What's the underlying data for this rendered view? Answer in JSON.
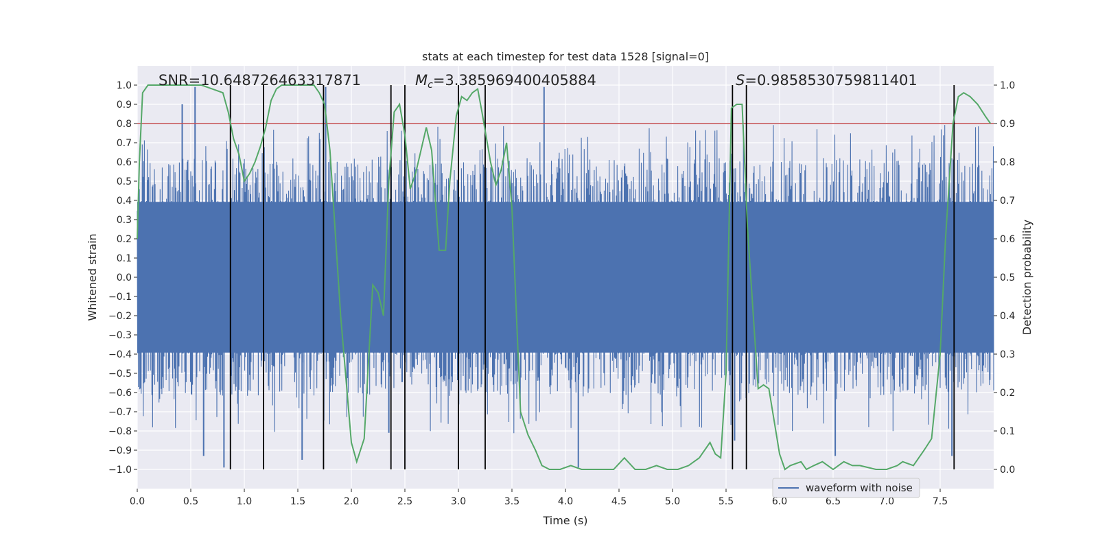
{
  "chart_data": {
    "type": "line",
    "title": "stats at each timestep for test data 1528 [signal=0]",
    "xlabel": "Time (s)",
    "ylabel": "Whitened strain",
    "y2label": "Detection probability",
    "xlim": [
      0.0,
      8.0
    ],
    "ylim": [
      -1.1,
      1.1
    ],
    "y2lim": [
      -0.05,
      1.05
    ],
    "x_ticks": [
      0.0,
      0.5,
      1.0,
      1.5,
      2.0,
      2.5,
      3.0,
      3.5,
      4.0,
      4.5,
      5.0,
      5.5,
      6.0,
      6.5,
      7.0,
      7.5
    ],
    "x_tick_labels": [
      "0.0",
      "0.5",
      "1.0",
      "1.5",
      "2.0",
      "2.5",
      "3.0",
      "3.5",
      "4.0",
      "4.5",
      "5.0",
      "5.5",
      "6.0",
      "6.5",
      "7.0",
      "7.5"
    ],
    "y_ticks": [
      1.0,
      0.9,
      0.8,
      0.7,
      0.6,
      0.5,
      0.4,
      0.3,
      0.2,
      0.1,
      0.0,
      -0.1,
      -0.2,
      -0.3,
      -0.4,
      -0.5,
      -0.6,
      -0.7,
      -0.8,
      -0.9,
      -1.0
    ],
    "y_tick_labels": [
      "1.0",
      "0.9",
      "0.8",
      "0.7",
      "0.6",
      "0.5",
      "0.4",
      "0.3",
      "0.2",
      "0.1",
      "0.0",
      "−0.1",
      "−0.2",
      "−0.3",
      "−0.4",
      "−0.5",
      "−0.6",
      "−0.7",
      "−0.8",
      "−0.9",
      "−1.0"
    ],
    "y2_ticks": [
      1.0,
      0.9,
      0.8,
      0.7,
      0.6,
      0.5,
      0.4,
      0.3,
      0.2,
      0.1,
      0.0
    ],
    "y2_tick_labels": [
      "1.0",
      "0.9",
      "0.8",
      "0.7",
      "0.6",
      "0.5",
      "0.4",
      "0.3",
      "0.2",
      "0.1",
      "0.0"
    ],
    "annotations": {
      "snr": "SNR=10.648726463317871",
      "mc_symbol": "M",
      "mc_sub": "c",
      "mc_value": "=3.385969400405884",
      "s_symbol": "S",
      "s_value": "=0.9858530759811401"
    },
    "threshold": {
      "value": 0.8,
      "color": "#c44e52"
    },
    "vertical_lines": [
      0.87,
      1.18,
      1.74,
      2.37,
      2.5,
      3.0,
      3.25,
      5.56,
      5.69,
      7.63
    ],
    "strain": {
      "name": "waveform with noise",
      "color": "#4c72b0",
      "core_amplitude": 0.4,
      "spike_max": 0.99,
      "spikes": [
        [
          0.54,
          0.99
        ],
        [
          0.42,
          0.9
        ],
        [
          1.76,
          0.99
        ],
        [
          3.8,
          0.99
        ],
        [
          4.12,
          -0.99
        ],
        [
          0.62,
          -0.93
        ],
        [
          0.81,
          -0.99
        ],
        [
          1.54,
          -0.95
        ],
        [
          2.35,
          -0.81
        ],
        [
          5.58,
          -0.85
        ],
        [
          6.52,
          -0.93
        ],
        [
          7.61,
          -0.93
        ]
      ]
    },
    "probability": {
      "name": "detection probability",
      "color": "#55a868",
      "x": [
        0.0,
        0.02,
        0.05,
        0.1,
        0.2,
        0.3,
        0.5,
        0.6,
        0.7,
        0.8,
        0.85,
        0.9,
        0.95,
        1.0,
        1.05,
        1.1,
        1.15,
        1.2,
        1.25,
        1.3,
        1.35,
        1.45,
        1.55,
        1.65,
        1.7,
        1.75,
        1.8,
        1.9,
        2.0,
        2.05,
        2.12,
        2.2,
        2.25,
        2.3,
        2.35,
        2.4,
        2.45,
        2.5,
        2.55,
        2.6,
        2.7,
        2.75,
        2.82,
        2.88,
        2.92,
        2.98,
        3.03,
        3.08,
        3.13,
        3.18,
        3.22,
        3.3,
        3.35,
        3.4,
        3.45,
        3.5,
        3.58,
        3.65,
        3.72,
        3.78,
        3.85,
        3.95,
        4.05,
        4.15,
        4.25,
        4.35,
        4.45,
        4.55,
        4.65,
        4.75,
        4.85,
        4.95,
        5.05,
        5.15,
        5.25,
        5.35,
        5.4,
        5.45,
        5.5,
        5.55,
        5.6,
        5.65,
        5.7,
        5.8,
        5.85,
        5.9,
        6.0,
        6.05,
        6.1,
        6.2,
        6.25,
        6.32,
        6.4,
        6.5,
        6.6,
        6.68,
        6.75,
        6.9,
        7.0,
        7.1,
        7.15,
        7.25,
        7.35,
        7.42,
        7.5,
        7.55,
        7.62,
        7.67,
        7.72,
        7.78,
        7.85,
        7.92,
        7.97
      ],
      "y": [
        0.6,
        0.8,
        0.98,
        1.0,
        1.0,
        1.0,
        1.0,
        1.0,
        0.99,
        0.98,
        0.93,
        0.86,
        0.82,
        0.75,
        0.77,
        0.8,
        0.84,
        0.89,
        0.96,
        0.99,
        1.0,
        1.0,
        1.0,
        1.0,
        0.98,
        0.95,
        0.83,
        0.4,
        0.07,
        0.02,
        0.08,
        0.48,
        0.46,
        0.4,
        0.75,
        0.93,
        0.95,
        0.87,
        0.73,
        0.77,
        0.89,
        0.83,
        0.57,
        0.57,
        0.75,
        0.92,
        0.97,
        0.96,
        0.98,
        0.99,
        0.93,
        0.8,
        0.74,
        0.78,
        0.85,
        0.68,
        0.15,
        0.09,
        0.05,
        0.01,
        0.0,
        0.0,
        0.01,
        0.0,
        0.0,
        0.0,
        0.0,
        0.03,
        0.0,
        0.0,
        0.01,
        0.0,
        0.0,
        0.01,
        0.03,
        0.07,
        0.04,
        0.03,
        0.25,
        0.94,
        0.95,
        0.95,
        0.63,
        0.21,
        0.22,
        0.21,
        0.04,
        0.0,
        0.01,
        0.02,
        0.0,
        0.01,
        0.02,
        0.0,
        0.02,
        0.01,
        0.01,
        0.0,
        0.0,
        0.01,
        0.02,
        0.01,
        0.05,
        0.08,
        0.3,
        0.6,
        0.9,
        0.97,
        0.98,
        0.97,
        0.95,
        0.92,
        0.9
      ]
    },
    "legend": {
      "label": "waveform with noise",
      "location": "lower-right"
    }
  }
}
